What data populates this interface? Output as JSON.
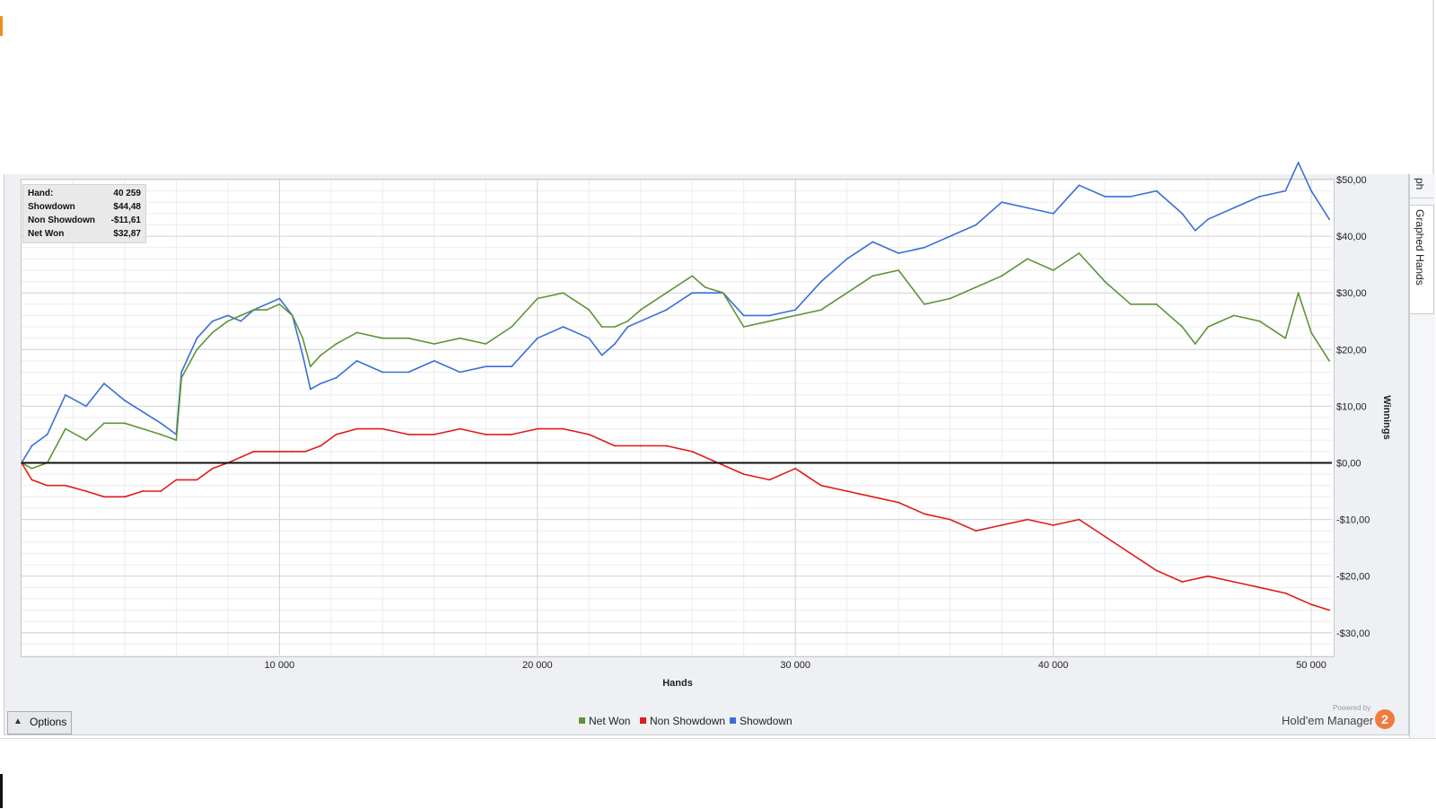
{
  "sidebar": {
    "tab_top": "ph",
    "tab_graphed": "Graphed Hands"
  },
  "tooltip": {
    "rows": [
      {
        "label": "Hand:",
        "value": "40 259"
      },
      {
        "label": "Showdown",
        "value": "$44,48"
      },
      {
        "label": "Non Showdown",
        "value": "-$11,61"
      },
      {
        "label": "Net Won",
        "value": "$32,87"
      }
    ]
  },
  "options": {
    "label": "Options"
  },
  "legend": [
    {
      "label": "Net Won",
      "color": "#5e9437"
    },
    {
      "label": "Non Showdown",
      "color": "#e01b1b"
    },
    {
      "label": "Showdown",
      "color": "#3a6fd8"
    }
  ],
  "brand": {
    "powered_by": "Powered by",
    "name": "Hold'em Manager",
    "logo": "2"
  },
  "chart_data": {
    "type": "line",
    "xlabel": "Hands",
    "ylabel": "Winnings",
    "xlim": [
      0,
      50800
    ],
    "ylim": [
      -34,
      50
    ],
    "x_ticks": [
      10000,
      20000,
      30000,
      40000,
      50000
    ],
    "x_tick_labels": [
      "10 000",
      "20 000",
      "30 000",
      "40 000",
      "50 000"
    ],
    "y_ticks": [
      50,
      40,
      30,
      20,
      10,
      0,
      -10,
      -20,
      -30
    ],
    "y_tick_labels": [
      "$50,00",
      "$40,00",
      "$30,00",
      "$20,00",
      "$10,00",
      "$0,00",
      "-$10,00",
      "-$20,00",
      "-$30,00"
    ],
    "grid": true,
    "zero_line": true,
    "legend_position": "bottom-center",
    "series": [
      {
        "name": "Showdown",
        "color": "#3a6fd8",
        "x": [
          0,
          400,
          1000,
          1700,
          2500,
          3200,
          4000,
          4700,
          5400,
          6000,
          6200,
          6800,
          7400,
          8000,
          8500,
          9000,
          9500,
          10000,
          10500,
          10900,
          11200,
          11600,
          12200,
          13000,
          14000,
          15000,
          16000,
          17000,
          18000,
          19000,
          20000,
          21000,
          22000,
          22500,
          23000,
          23500,
          24000,
          25000,
          26000,
          26500,
          27200,
          28000,
          29000,
          30000,
          31000,
          32000,
          33000,
          34000,
          35000,
          36000,
          37000,
          38000,
          39000,
          40000,
          41000,
          42000,
          43000,
          44000,
          45000,
          45500,
          46000,
          47000,
          48000,
          49000,
          49500,
          50000,
          50700
        ],
        "values": [
          0,
          3,
          5,
          12,
          10,
          14,
          11,
          9,
          7,
          5,
          16,
          22,
          25,
          26,
          25,
          27,
          28,
          29,
          26,
          19,
          13,
          14,
          15,
          18,
          16,
          16,
          18,
          16,
          17,
          17,
          22,
          24,
          22,
          19,
          21,
          24,
          25,
          27,
          30,
          30,
          30,
          26,
          26,
          27,
          32,
          36,
          39,
          37,
          38,
          40,
          42,
          46,
          45,
          44,
          49,
          47,
          47,
          48,
          44,
          41,
          43,
          45,
          47,
          48,
          53,
          48,
          43
        ]
      },
      {
        "name": "Net Won",
        "color": "#5e9437",
        "x": [
          0,
          400,
          1000,
          1700,
          2500,
          3200,
          4000,
          4700,
          5400,
          6000,
          6200,
          6800,
          7400,
          8000,
          8500,
          9000,
          9500,
          10000,
          10500,
          10900,
          11200,
          11600,
          12200,
          13000,
          14000,
          15000,
          16000,
          17000,
          18000,
          19000,
          20000,
          21000,
          22000,
          22500,
          23000,
          23500,
          24000,
          25000,
          26000,
          26500,
          27200,
          28000,
          29000,
          30000,
          31000,
          32000,
          33000,
          34000,
          35000,
          36000,
          37000,
          38000,
          39000,
          40000,
          41000,
          42000,
          43000,
          44000,
          45000,
          45500,
          46000,
          47000,
          48000,
          49000,
          49500,
          50000,
          50700
        ],
        "values": [
          0,
          -1,
          0,
          6,
          4,
          7,
          7,
          6,
          5,
          4,
          15,
          20,
          23,
          25,
          26,
          27,
          27,
          28,
          26,
          22,
          17,
          19,
          21,
          23,
          22,
          22,
          21,
          22,
          21,
          24,
          29,
          30,
          27,
          24,
          24,
          25,
          27,
          30,
          33,
          31,
          30,
          24,
          25,
          26,
          27,
          30,
          33,
          34,
          28,
          29,
          31,
          33,
          36,
          34,
          37,
          32,
          28,
          28,
          24,
          21,
          24,
          26,
          25,
          22,
          30,
          23,
          18
        ]
      },
      {
        "name": "Non Showdown",
        "color": "#e01b1b",
        "x": [
          0,
          400,
          1000,
          1700,
          2500,
          3200,
          4000,
          4700,
          5400,
          6000,
          6800,
          7400,
          8000,
          8500,
          9000,
          9500,
          10000,
          10500,
          11000,
          11600,
          12200,
          13000,
          14000,
          15000,
          16000,
          17000,
          18000,
          19000,
          20000,
          21000,
          22000,
          23000,
          24000,
          25000,
          26000,
          27000,
          28000,
          29000,
          30000,
          31000,
          32000,
          33000,
          34000,
          35000,
          36000,
          37000,
          38000,
          39000,
          40000,
          41000,
          42000,
          43000,
          44000,
          45000,
          46000,
          47000,
          48000,
          49000,
          50000,
          50700
        ],
        "values": [
          0,
          -3,
          -4,
          -4,
          -5,
          -6,
          -6,
          -5,
          -5,
          -3,
          -3,
          -1,
          0,
          1,
          2,
          2,
          2,
          2,
          2,
          3,
          5,
          6,
          6,
          5,
          5,
          6,
          5,
          5,
          6,
          6,
          5,
          3,
          3,
          3,
          2,
          0,
          -2,
          -3,
          -1,
          -4,
          -5,
          -6,
          -7,
          -9,
          -10,
          -12,
          -11,
          -10,
          -11,
          -10,
          -13,
          -16,
          -19,
          -21,
          -20,
          -21,
          -22,
          -23,
          -25,
          -26
        ]
      }
    ]
  }
}
